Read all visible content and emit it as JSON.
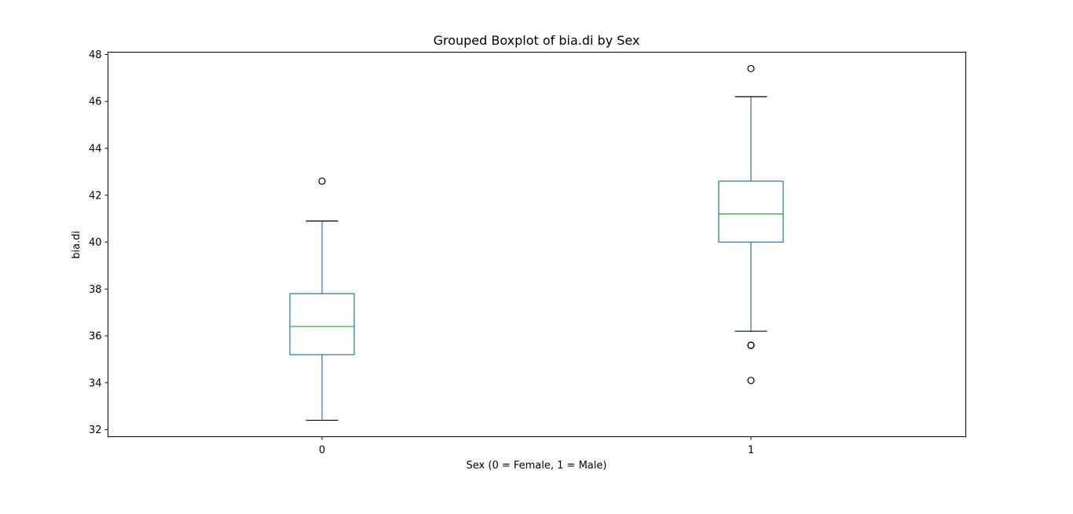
{
  "chart_data": {
    "type": "boxplot",
    "title": "Grouped Boxplot of bia.di by Sex",
    "xlabel": "Sex (0 = Female, 1 = Male)",
    "ylabel": "bia.di",
    "categories": [
      "0",
      "1"
    ],
    "ylim": [
      31.7,
      48.1
    ],
    "yticks": [
      32,
      34,
      36,
      38,
      40,
      42,
      44,
      46,
      48
    ],
    "ytick_labels": [
      "32",
      "34",
      "36",
      "38",
      "40",
      "42",
      "44",
      "46",
      "48"
    ],
    "grid": false,
    "legend": "none",
    "boxes": [
      {
        "category": "0",
        "whislo": 32.4,
        "q1": 35.2,
        "median": 36.4,
        "q3": 37.8,
        "whishi": 40.9,
        "fliers": [
          42.6
        ]
      },
      {
        "category": "1",
        "whislo": 36.2,
        "q1": 40.0,
        "median": 41.2,
        "q3": 42.6,
        "whishi": 46.2,
        "fliers": [
          47.4,
          35.6,
          35.6,
          34.1
        ]
      }
    ],
    "colors": {
      "box": "#1f77b4",
      "median": "#2ca02c",
      "caps": "#000000",
      "fliers": "#000000"
    }
  }
}
